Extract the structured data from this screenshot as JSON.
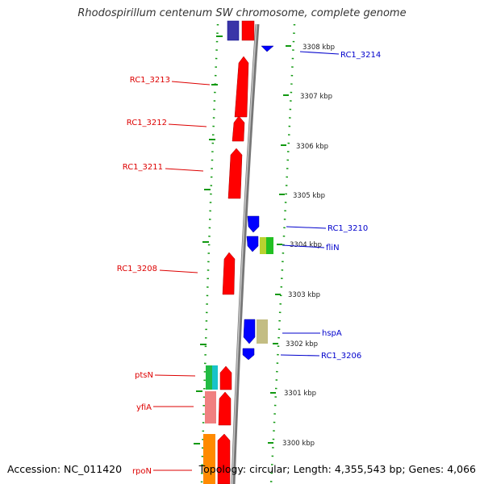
{
  "title": "Rhodospirillum centenum SW chromosome, complete genome",
  "accession": "Accession: NC_011420",
  "topology": "Topology: circular; Length: 4,355,543 bp; Genes: 4,066",
  "colors": {
    "forward": "#ff0000",
    "reverse": "#0000ff",
    "backbone": "#888888",
    "guide": "#119911"
  },
  "ticks": [
    "3308 kbp",
    "3307 kbp",
    "3306 kbp",
    "3305 kbp",
    "3304 kbp",
    "3303 kbp",
    "3302 kbp",
    "3301 kbp",
    "3300 kbp"
  ],
  "labels": {
    "left": [
      "RC1_3213",
      "RC1_3212",
      "RC1_3211",
      "RC1_3208",
      "ptsN",
      "yfiA",
      "rpoN"
    ],
    "right": [
      "RC1_3214",
      "RC1_3210",
      "fliN",
      "hspA",
      "RC1_3206"
    ]
  }
}
